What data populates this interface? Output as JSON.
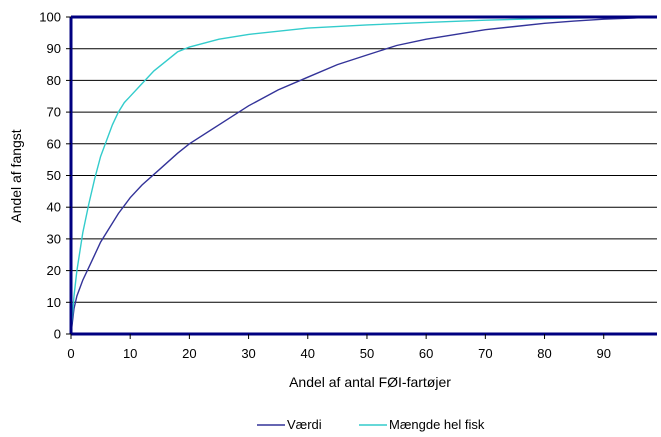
{
  "chart_data": {
    "type": "line",
    "title": "",
    "xlabel": "Andel af antal FØI-fartøjer",
    "ylabel": "Andel af fangst",
    "xlim": [
      0,
      99
    ],
    "ylim": [
      0,
      100
    ],
    "x_ticks": [
      0,
      10,
      20,
      30,
      40,
      50,
      60,
      70,
      80,
      90
    ],
    "y_ticks": [
      0,
      10,
      20,
      30,
      40,
      50,
      60,
      70,
      80,
      90,
      100
    ],
    "grid": "horizontal",
    "legend_position": "bottom",
    "series": [
      {
        "name": "Værdi",
        "color": "#333399",
        "x": [
          0,
          0.5,
          1,
          2,
          3,
          4,
          5,
          6,
          8,
          10,
          12,
          15,
          18,
          20,
          25,
          30,
          35,
          40,
          45,
          50,
          55,
          60,
          65,
          70,
          75,
          80,
          85,
          90,
          95,
          99
        ],
        "y": [
          0,
          8,
          12,
          17,
          21,
          25,
          29,
          32,
          38,
          43,
          47,
          52,
          57,
          60,
          66,
          72,
          77,
          81,
          85,
          88,
          91,
          93,
          94.5,
          96,
          97,
          98,
          98.7,
          99.3,
          99.7,
          100
        ]
      },
      {
        "name": "Mængde hel fisk",
        "color": "#33CCCC",
        "x": [
          0,
          0.5,
          1,
          2,
          3,
          4,
          5,
          6,
          7,
          8,
          9,
          10,
          12,
          14,
          16,
          18,
          20,
          25,
          30,
          40,
          50,
          60,
          70,
          80,
          90,
          99
        ],
        "y": [
          0,
          12,
          20,
          32,
          41,
          49,
          56,
          61,
          66,
          70,
          73,
          75,
          79,
          83,
          86,
          89,
          90.5,
          93,
          94.5,
          96.5,
          97.5,
          98.3,
          99,
          99.5,
          99.8,
          100
        ]
      }
    ]
  }
}
